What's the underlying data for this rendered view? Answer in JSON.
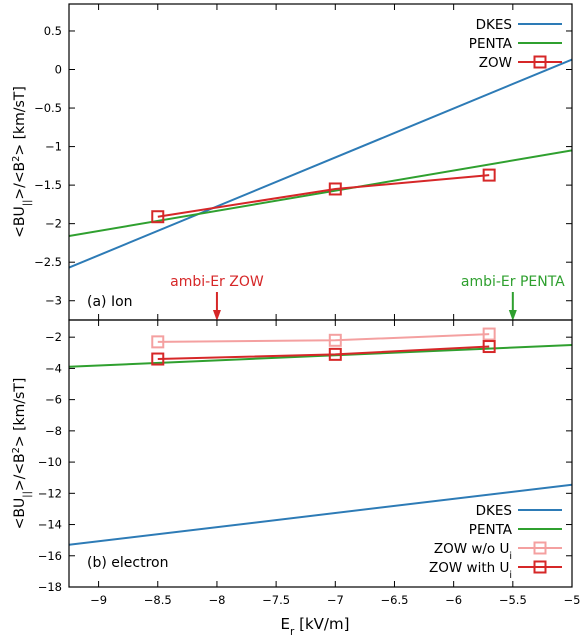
{
  "chart_data": [
    {
      "type": "line",
      "panel_label": "(a) Ion",
      "ylabel": "<BU||>/<B²> [km/sT]",
      "xlim": [
        -9.25,
        -5
      ],
      "ylim": [
        -3.25,
        0.85
      ],
      "yticks": [
        0.5,
        0,
        -0.5,
        -1,
        -1.5,
        -2,
        -2.5,
        -3
      ],
      "ytick_labels": [
        "0.5",
        "0",
        "−0.5",
        "−1",
        "−1.5",
        "−2",
        "−2.5",
        "−3"
      ],
      "legend_position": "top-right",
      "series": [
        {
          "name": "DKES",
          "color": "#2d7bb6",
          "marker": "none",
          "x": [
            -9.25,
            -5
          ],
          "y": [
            -2.57,
            0.13
          ]
        },
        {
          "name": "PENTA",
          "color": "#2fa02f",
          "marker": "none",
          "x": [
            -9.25,
            -5
          ],
          "y": [
            -2.16,
            -1.05
          ]
        },
        {
          "name": "ZOW",
          "color": "#d62728",
          "marker": "square",
          "x": [
            -8.5,
            -7,
            -5.7
          ],
          "y": [
            -1.91,
            -1.55,
            -1.37
          ]
        }
      ],
      "annotations": [
        {
          "text": "ambi-Er ZOW",
          "x": -8,
          "color": "#d62728"
        },
        {
          "text": "ambi-Er PENTA",
          "x": -5.5,
          "color": "#2fa02f"
        }
      ]
    },
    {
      "type": "line",
      "panel_label": "(b) electron",
      "ylabel": "<BU||>/<B²> [km/sT]",
      "xlabel": "Er [kV/m]",
      "xlim": [
        -9.25,
        -5
      ],
      "ylim": [
        -18,
        -0.9
      ],
      "xticks": [
        -9,
        -8.5,
        -8,
        -7.5,
        -7,
        -6.5,
        -6,
        -5.5,
        -5
      ],
      "xtick_labels": [
        "−9",
        "−8.5",
        "−8",
        "−7.5",
        "−7",
        "−6.5",
        "−6",
        "−5.5",
        "−5"
      ],
      "yticks": [
        -2,
        -4,
        -6,
        -8,
        -10,
        -12,
        -14,
        -16,
        -18
      ],
      "ytick_labels": [
        "−2",
        "−4",
        "−6",
        "−8",
        "−10",
        "−12",
        "−14",
        "−16",
        "−18"
      ],
      "legend_position": "bottom-right",
      "series": [
        {
          "name": "DKES",
          "color": "#2d7bb6",
          "marker": "none",
          "x": [
            -9.25,
            -5
          ],
          "y": [
            -15.3,
            -11.45
          ]
        },
        {
          "name": "PENTA",
          "color": "#2fa02f",
          "marker": "none",
          "x": [
            -9.25,
            -5
          ],
          "y": [
            -3.9,
            -2.5
          ]
        },
        {
          "name": "ZOW w/o Ui",
          "color": "#f4a0a0",
          "marker": "square",
          "x": [
            -8.5,
            -7,
            -5.7
          ],
          "y": [
            -2.3,
            -2.2,
            -1.8
          ]
        },
        {
          "name": "ZOW with Ui",
          "color": "#d62728",
          "marker": "square",
          "x": [
            -8.5,
            -7,
            -5.7
          ],
          "y": [
            -3.4,
            -3.1,
            -2.6
          ]
        }
      ]
    }
  ]
}
